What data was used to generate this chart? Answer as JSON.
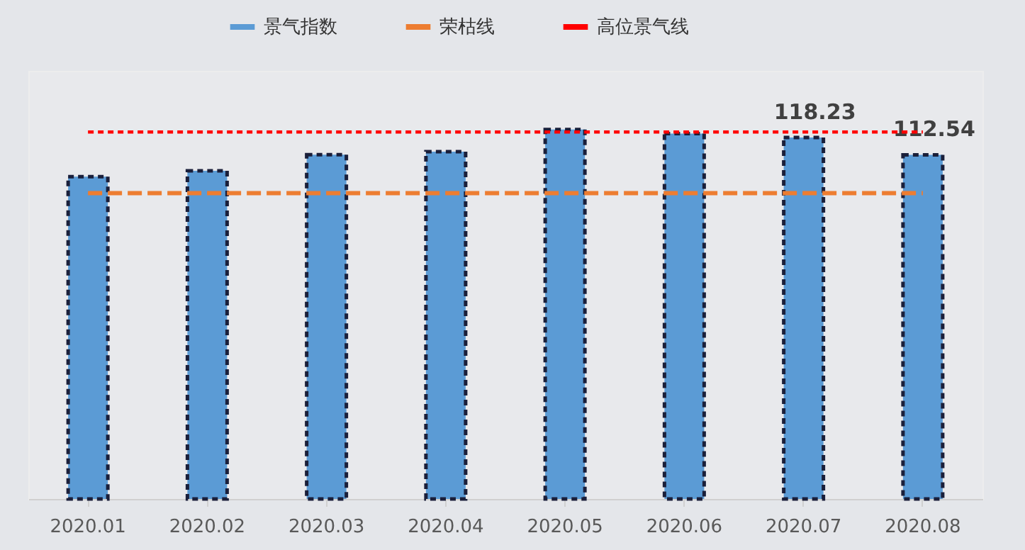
{
  "chart_data": {
    "type": "bar",
    "categories": [
      "2020.01",
      "2020.02",
      "2020.03",
      "2020.04",
      "2020.05",
      "2020.06",
      "2020.07",
      "2020.08"
    ],
    "series": [
      {
        "name": "景气指数",
        "color": "#5b9bd5",
        "values": [
          105.4,
          107.3,
          112.6,
          113.6,
          120.8,
          119.5,
          118.23,
          112.54
        ],
        "value_labels": [
          null,
          null,
          null,
          null,
          null,
          null,
          "118.23",
          "112.54"
        ]
      },
      {
        "name": "荣枯线",
        "type": "line",
        "color": "#ed7d31",
        "line_style": "dashed",
        "values": [
          100,
          100,
          100,
          100,
          100,
          100,
          100,
          100
        ]
      },
      {
        "name": "高位景气线",
        "type": "line",
        "color": "#ff0000",
        "line_style": "dotted",
        "values": [
          120,
          120,
          120,
          120,
          120,
          120,
          120,
          120
        ]
      }
    ],
    "ylim": [
      0,
      140
    ],
    "tick_labels": "x",
    "grid": false,
    "legend": "top"
  }
}
